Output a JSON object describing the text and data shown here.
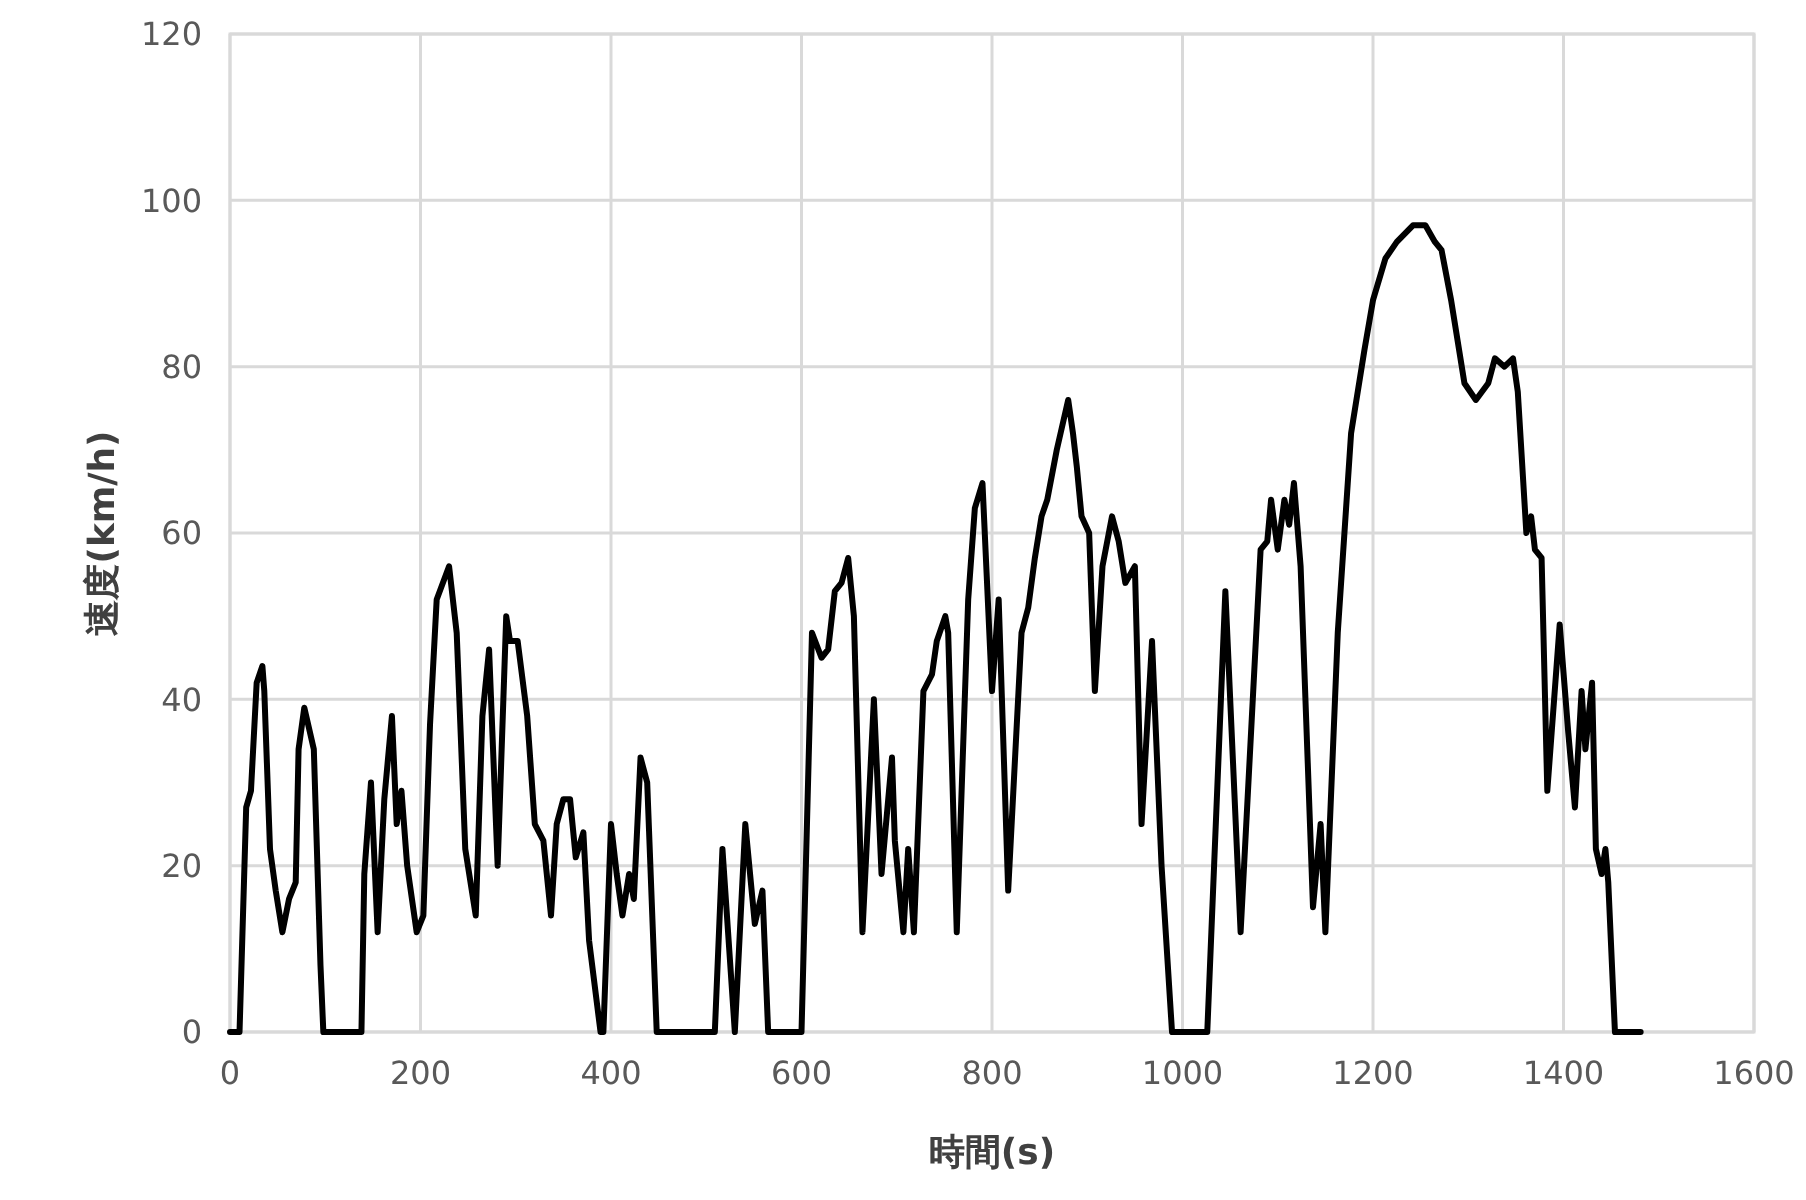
{
  "chart_data": {
    "type": "line",
    "xlabel": "時間(s)",
    "ylabel": "速度(km/h)",
    "xlim": [
      0,
      1600
    ],
    "xticks": [
      0,
      200,
      400,
      600,
      800,
      1000,
      1200,
      1400,
      1600
    ],
    "ylim": [
      0,
      120
    ],
    "yticks": [
      0,
      20,
      40,
      60,
      80,
      100,
      120
    ],
    "grid": true,
    "marker": "none",
    "line_style": "solid",
    "series": [
      {
        "color": "#000000",
        "x": [
          0,
          10,
          17,
          22,
          28,
          34,
          36,
          42,
          48,
          55,
          62,
          69,
          72,
          78,
          88,
          95,
          98,
          138,
          141,
          148,
          155,
          162,
          170,
          175,
          180,
          186,
          196,
          203,
          210,
          217,
          230,
          238,
          247,
          258,
          265,
          272,
          281,
          290,
          294,
          302,
          312,
          320,
          329,
          337,
          343,
          350,
          357,
          363,
          371,
          377,
          389,
          392,
          400,
          406,
          412,
          419,
          424,
          431,
          438,
          448,
          509,
          517,
          530,
          541,
          551,
          559,
          565,
          600,
          611,
          621,
          628,
          635,
          642,
          649,
          655,
          664,
          676,
          684,
          695,
          698,
          707,
          712,
          718,
          728,
          737,
          742,
          751,
          754,
          763,
          775,
          782,
          790,
          800,
          807,
          817,
          831,
          838,
          845,
          852,
          858,
          868,
          880,
          885,
          889,
          894,
          902,
          908,
          916,
          926,
          933,
          940,
          950,
          957,
          968,
          978,
          989,
          1026,
          1045,
          1061,
          1082,
          1089,
          1093,
          1100,
          1107,
          1112,
          1117,
          1124,
          1137,
          1145,
          1150,
          1163,
          1177,
          1191,
          1200,
          1213,
          1225,
          1242,
          1255,
          1265,
          1272,
          1282,
          1296,
          1308,
          1321,
          1328,
          1338,
          1347,
          1352,
          1361,
          1366,
          1370,
          1377,
          1383,
          1396,
          1405,
          1412,
          1419,
          1423,
          1430,
          1434,
          1440,
          1444,
          1447,
          1454,
          1481
        ],
        "values": [
          0,
          0,
          27,
          29,
          42,
          44,
          41,
          22,
          17,
          12,
          16,
          18,
          34,
          39,
          34,
          8,
          0,
          0,
          19,
          30,
          12,
          28,
          38,
          25,
          29,
          20,
          12,
          14,
          37,
          52,
          56,
          48,
          22,
          14,
          38,
          46,
          20,
          50,
          47,
          47,
          38,
          25,
          23,
          14,
          25,
          28,
          28,
          21,
          24,
          11,
          0,
          0,
          25,
          19,
          14,
          19,
          16,
          33,
          30,
          0,
          0,
          22,
          0,
          25,
          13,
          17,
          0,
          0,
          48,
          45,
          46,
          53,
          54,
          57,
          50,
          12,
          40,
          19,
          33,
          23,
          12,
          22,
          12,
          41,
          43,
          47,
          50,
          48,
          12,
          52,
          63,
          66,
          41,
          52,
          17,
          48,
          51,
          57,
          62,
          64,
          70,
          76,
          72,
          68,
          62,
          60,
          41,
          56,
          62,
          59,
          54,
          56,
          25,
          47,
          20,
          0,
          0,
          53,
          12,
          58,
          59,
          64,
          58,
          64,
          61,
          66,
          56,
          15,
          25,
          12,
          48,
          72,
          82,
          88,
          93,
          95,
          97,
          97,
          95,
          94,
          88,
          78,
          76,
          78,
          81,
          80,
          81,
          77,
          60,
          62,
          58,
          57,
          29,
          49,
          36,
          27,
          41,
          34,
          42,
          22,
          19,
          22,
          18,
          0,
          0
        ]
      }
    ]
  }
}
